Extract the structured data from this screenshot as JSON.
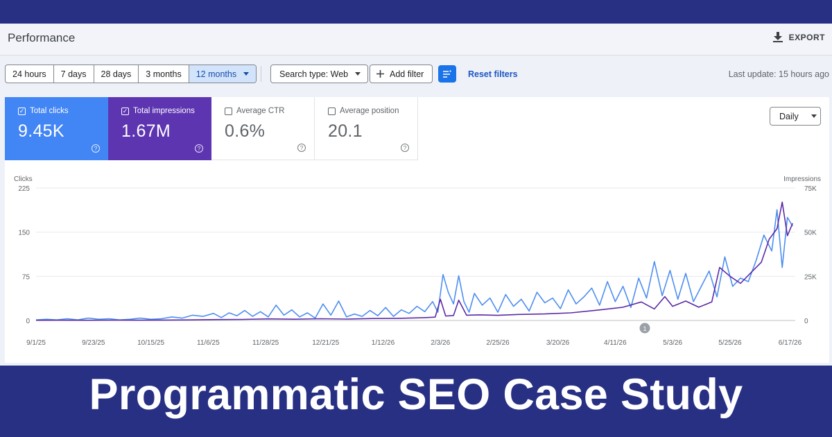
{
  "header": {
    "title": "Performance",
    "export_label": "EXPORT",
    "export_icon": "download-icon"
  },
  "filter_bar": {
    "date_ranges": [
      "24 hours",
      "7 days",
      "28 days",
      "3 months",
      "12 months"
    ],
    "selected_range": "12 months",
    "search_type": "Search type: Web",
    "add_filter": "Add filter",
    "reset_filters": "Reset filters",
    "last_update": "Last update: 15 hours ago"
  },
  "metrics": [
    {
      "label": "Total clicks",
      "value": "9.45K",
      "checked": true,
      "color": "#4285f4"
    },
    {
      "label": "Total impressions",
      "value": "1.67M",
      "checked": true,
      "color": "#5e35b1"
    },
    {
      "label": "Average CTR",
      "value": "0.6%",
      "checked": false,
      "color": "#ffffff"
    },
    {
      "label": "Average position",
      "value": "20.1",
      "checked": false,
      "color": "#ffffff"
    }
  ],
  "granularity": "Daily",
  "chart_data": {
    "type": "line",
    "left_axis_label": "Clicks",
    "right_axis_label": "Impressions",
    "left_ticks": [
      "225",
      "150",
      "75",
      "0"
    ],
    "right_ticks": [
      "75K",
      "50K",
      "25K",
      "0"
    ],
    "ylim_left": [
      0,
      225
    ],
    "ylim_right": [
      0,
      75000
    ],
    "x_tick_labels": [
      "9/1/25",
      "9/23/25",
      "10/15/25",
      "11/6/25",
      "11/28/25",
      "12/21/25",
      "1/12/26",
      "2/3/26",
      "2/25/26",
      "3/20/26",
      "4/11/26",
      "5/3/26",
      "5/25/26",
      "6/17/26"
    ],
    "x_range": [
      "9/1/25",
      "6/19/26"
    ],
    "annotation": "1",
    "series": [
      {
        "name": "Clicks",
        "axis": "left",
        "color": "#4d8ef0",
        "points": [
          [
            "9/1/25",
            1
          ],
          [
            "9/5/25",
            2
          ],
          [
            "9/9/25",
            1
          ],
          [
            "9/13/25",
            3
          ],
          [
            "9/17/25",
            1
          ],
          [
            "9/21/25",
            4
          ],
          [
            "9/25/25",
            2
          ],
          [
            "9/29/25",
            3
          ],
          [
            "10/3/25",
            1
          ],
          [
            "10/7/25",
            2
          ],
          [
            "10/11/25",
            4
          ],
          [
            "10/15/25",
            2
          ],
          [
            "10/19/25",
            3
          ],
          [
            "10/23/25",
            6
          ],
          [
            "10/27/25",
            4
          ],
          [
            "10/31/25",
            9
          ],
          [
            "11/4/25",
            7
          ],
          [
            "11/8/25",
            12
          ],
          [
            "11/11/25",
            5
          ],
          [
            "11/14/25",
            13
          ],
          [
            "11/17/25",
            8
          ],
          [
            "11/20/25",
            17
          ],
          [
            "11/23/25",
            7
          ],
          [
            "11/26/25",
            15
          ],
          [
            "11/29/25",
            6
          ],
          [
            "12/2/25",
            26
          ],
          [
            "12/5/25",
            9
          ],
          [
            "12/8/25",
            18
          ],
          [
            "12/11/25",
            6
          ],
          [
            "12/14/25",
            13
          ],
          [
            "12/17/25",
            4
          ],
          [
            "12/20/25",
            28
          ],
          [
            "12/23/25",
            9
          ],
          [
            "12/26/25",
            33
          ],
          [
            "12/29/25",
            6
          ],
          [
            "1/1/26",
            11
          ],
          [
            "1/4/26",
            7
          ],
          [
            "1/7/26",
            17
          ],
          [
            "1/10/26",
            8
          ],
          [
            "1/13/26",
            22
          ],
          [
            "1/16/26",
            7
          ],
          [
            "1/19/26",
            18
          ],
          [
            "1/22/26",
            12
          ],
          [
            "1/25/26",
            24
          ],
          [
            "1/28/26",
            15
          ],
          [
            "1/31/26",
            32
          ],
          [
            "2/2/26",
            14
          ],
          [
            "2/4/26",
            78
          ],
          [
            "2/6/26",
            48
          ],
          [
            "2/8/26",
            28
          ],
          [
            "2/10/26",
            76
          ],
          [
            "2/12/26",
            32
          ],
          [
            "2/14/26",
            14
          ],
          [
            "2/16/26",
            46
          ],
          [
            "2/19/26",
            26
          ],
          [
            "2/22/26",
            38
          ],
          [
            "2/25/26",
            14
          ],
          [
            "2/28/26",
            44
          ],
          [
            "3/3/26",
            24
          ],
          [
            "3/6/26",
            36
          ],
          [
            "3/9/26",
            16
          ],
          [
            "3/12/26",
            48
          ],
          [
            "3/15/26",
            30
          ],
          [
            "3/18/26",
            38
          ],
          [
            "3/21/26",
            20
          ],
          [
            "3/24/26",
            52
          ],
          [
            "3/27/26",
            28
          ],
          [
            "3/30/26",
            40
          ],
          [
            "4/2/26",
            55
          ],
          [
            "4/5/26",
            26
          ],
          [
            "4/8/26",
            66
          ],
          [
            "4/11/26",
            32
          ],
          [
            "4/14/26",
            58
          ],
          [
            "4/17/26",
            22
          ],
          [
            "4/20/26",
            72
          ],
          [
            "4/23/26",
            38
          ],
          [
            "4/26/26",
            100
          ],
          [
            "4/29/26",
            42
          ],
          [
            "5/2/26",
            85
          ],
          [
            "5/5/26",
            36
          ],
          [
            "5/8/26",
            80
          ],
          [
            "5/11/26",
            32
          ],
          [
            "5/14/26",
            58
          ],
          [
            "5/17/26",
            84
          ],
          [
            "5/20/26",
            40
          ],
          [
            "5/23/26",
            108
          ],
          [
            "5/26/26",
            58
          ],
          [
            "5/29/26",
            72
          ],
          [
            "6/1/26",
            66
          ],
          [
            "6/4/26",
            102
          ],
          [
            "6/7/26",
            145
          ],
          [
            "6/10/26",
            118
          ],
          [
            "6/12/26",
            188
          ],
          [
            "6/14/26",
            90
          ],
          [
            "6/16/26",
            175
          ],
          [
            "6/18/26",
            160
          ]
        ]
      },
      {
        "name": "Impressions",
        "axis": "right",
        "color": "#5a2aa6",
        "points": [
          [
            "9/1/25",
            100
          ],
          [
            "9/10/25",
            150
          ],
          [
            "9/20/25",
            100
          ],
          [
            "9/30/25",
            200
          ],
          [
            "10/10/25",
            150
          ],
          [
            "10/20/25",
            250
          ],
          [
            "10/30/25",
            300
          ],
          [
            "11/9/25",
            500
          ],
          [
            "11/19/25",
            600
          ],
          [
            "11/29/25",
            900
          ],
          [
            "12/9/25",
            700
          ],
          [
            "12/19/25",
            1000
          ],
          [
            "12/29/25",
            800
          ],
          [
            "1/8/26",
            1100
          ],
          [
            "1/18/26",
            1200
          ],
          [
            "1/28/26",
            1600
          ],
          [
            "2/1/26",
            1900
          ],
          [
            "2/3/26",
            12000
          ],
          [
            "2/5/26",
            2500
          ],
          [
            "2/8/26",
            2800
          ],
          [
            "2/10/26",
            11500
          ],
          [
            "2/13/26",
            3000
          ],
          [
            "2/18/26",
            3200
          ],
          [
            "2/25/26",
            2900
          ],
          [
            "3/5/26",
            3400
          ],
          [
            "3/15/26",
            3700
          ],
          [
            "3/25/26",
            4300
          ],
          [
            "4/4/26",
            5800
          ],
          [
            "4/14/26",
            7500
          ],
          [
            "4/21/26",
            10500
          ],
          [
            "4/26/26",
            6500
          ],
          [
            "4/30/26",
            13500
          ],
          [
            "5/3/26",
            8000
          ],
          [
            "5/8/26",
            11000
          ],
          [
            "5/13/26",
            7500
          ],
          [
            "5/18/26",
            10500
          ],
          [
            "5/21/26",
            30000
          ],
          [
            "5/25/26",
            25000
          ],
          [
            "5/29/26",
            21000
          ],
          [
            "6/2/26",
            27000
          ],
          [
            "6/6/26",
            33000
          ],
          [
            "6/9/26",
            46000
          ],
          [
            "6/12/26",
            52000
          ],
          [
            "6/14/26",
            67000
          ],
          [
            "6/16/26",
            48000
          ],
          [
            "6/18/26",
            55000
          ]
        ]
      }
    ]
  },
  "banner_title": "Programmatic SEO Case Study"
}
